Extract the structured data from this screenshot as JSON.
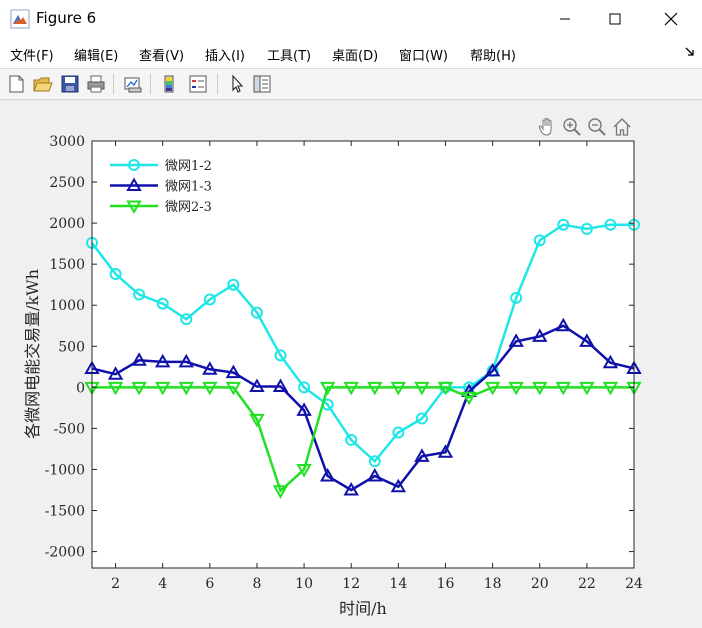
{
  "window": {
    "title": "Figure 6"
  },
  "menu": {
    "items": [
      {
        "label": "文件(F)"
      },
      {
        "label": "编辑(E)"
      },
      {
        "label": "查看(V)"
      },
      {
        "label": "插入(I)"
      },
      {
        "label": "工具(T)"
      },
      {
        "label": "桌面(D)"
      },
      {
        "label": "窗口(W)"
      },
      {
        "label": "帮助(H)"
      }
    ]
  },
  "toolbar": {
    "icons": [
      "new-figure-icon",
      "open-file-icon",
      "save-icon",
      "print-icon",
      "link-plot-icon",
      "colorbar-icon",
      "legend-icon",
      "pointer-icon",
      "property-inspector-icon"
    ]
  },
  "axes_toolbar": {
    "icons": [
      "pan-icon",
      "zoom-in-icon",
      "zoom-out-icon",
      "home-icon"
    ]
  },
  "chart_data": {
    "type": "line",
    "xlabel": "时间/h",
    "ylabel": "各微网电能交易量/kWh",
    "xlim": [
      1,
      24
    ],
    "ylim": [
      -2200,
      3000
    ],
    "xticks": [
      2,
      4,
      6,
      8,
      10,
      12,
      14,
      16,
      18,
      20,
      22,
      24
    ],
    "yticks": [
      -2000,
      -1500,
      -1000,
      -500,
      0,
      500,
      1000,
      1500,
      2000,
      2500,
      3000
    ],
    "grid": false,
    "legend_position": "top-left",
    "x": [
      1,
      2,
      3,
      4,
      5,
      6,
      7,
      8,
      9,
      10,
      11,
      12,
      13,
      14,
      15,
      16,
      17,
      18,
      19,
      20,
      21,
      22,
      23,
      24
    ],
    "series": [
      {
        "name": "微网1-2",
        "color": "#20e6e6",
        "marker": "circle",
        "values": [
          1760,
          1380,
          1130,
          1020,
          830,
          1070,
          1250,
          910,
          390,
          0,
          -210,
          -640,
          -900,
          -550,
          -380,
          0,
          0,
          200,
          1090,
          1790,
          1980,
          1930,
          1980,
          1980
        ]
      },
      {
        "name": "微网1-3",
        "color": "#1010aa",
        "marker": "triangle-up",
        "values": [
          230,
          160,
          330,
          310,
          310,
          220,
          180,
          10,
          10,
          -280,
          -1080,
          -1250,
          -1080,
          -1210,
          -840,
          -790,
          -50,
          200,
          560,
          620,
          750,
          560,
          300,
          230
        ]
      },
      {
        "name": "微网2-3",
        "color": "#22e022",
        "marker": "triangle-down",
        "values": [
          0,
          0,
          0,
          0,
          0,
          0,
          0,
          -390,
          -1260,
          -1000,
          0,
          0,
          0,
          0,
          0,
          0,
          -120,
          0,
          0,
          0,
          0,
          0,
          0,
          0
        ]
      }
    ]
  }
}
